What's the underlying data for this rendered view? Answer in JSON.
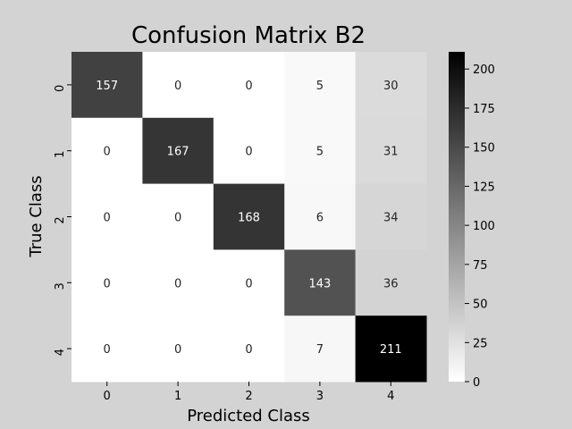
{
  "chart_data": {
    "type": "heatmap",
    "title": "Confusion Matrix B2",
    "xlabel": "Predicted Class",
    "ylabel": "True Class",
    "x_categories": [
      "0",
      "1",
      "2",
      "3",
      "4"
    ],
    "y_categories": [
      "0",
      "1",
      "2",
      "3",
      "4"
    ],
    "values": [
      [
        157,
        0,
        0,
        5,
        30
      ],
      [
        0,
        167,
        0,
        5,
        31
      ],
      [
        0,
        0,
        168,
        6,
        34
      ],
      [
        0,
        0,
        0,
        143,
        36
      ],
      [
        0,
        0,
        0,
        7,
        211
      ]
    ],
    "colorbar": {
      "range": [
        0,
        211
      ],
      "ticks": [
        0,
        25,
        50,
        75,
        100,
        125,
        150,
        175,
        200
      ],
      "colormap": "white-to-black"
    },
    "colors": {
      "background": "#d3d3d3",
      "low": "#ffffff",
      "high": "#000000"
    }
  }
}
